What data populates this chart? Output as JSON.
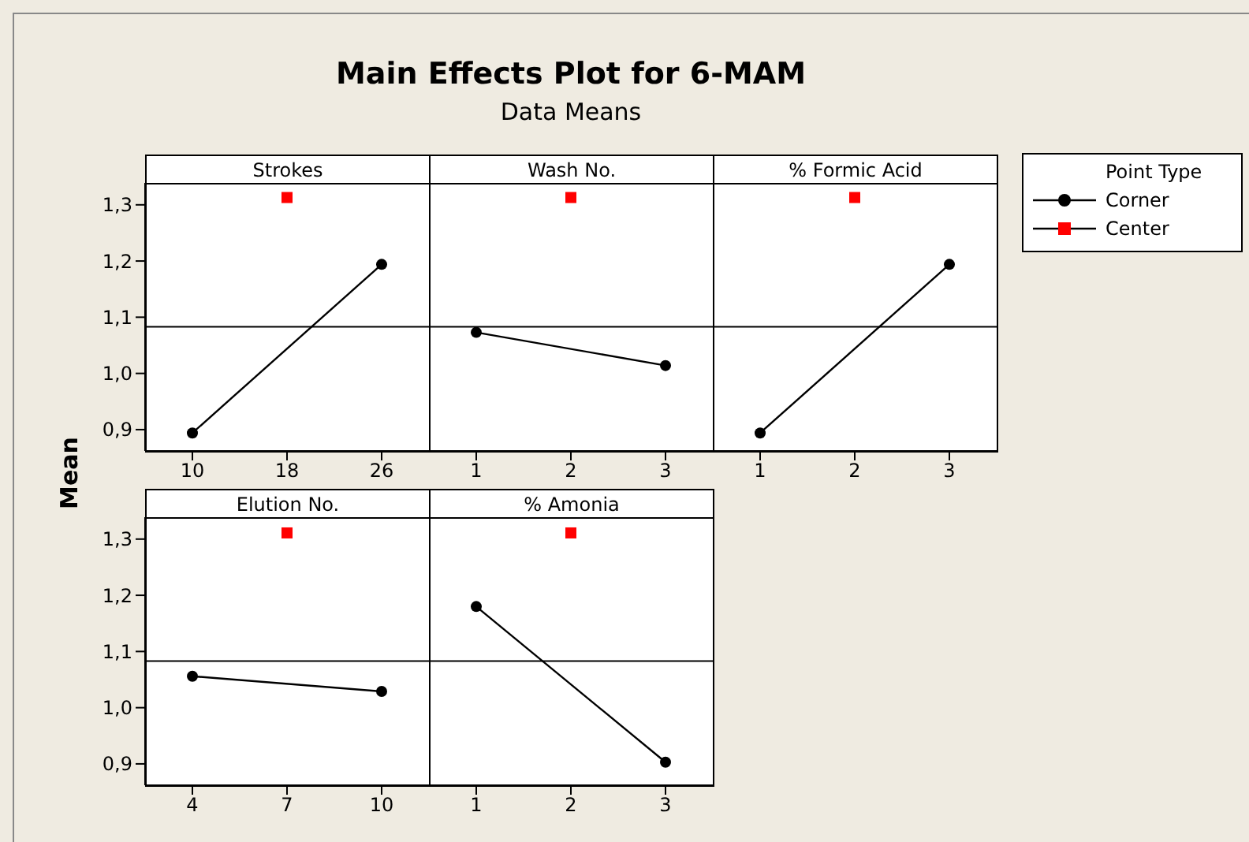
{
  "chart_data": [
    {
      "type": "line",
      "ylabel": "Mean",
      "xlabel": "Strokes",
      "xlim": [
        6,
        30
      ],
      "xticks": [
        10,
        18,
        26
      ],
      "ylim": [
        0.862,
        1.339
      ],
      "yticks": [
        {
          "value": 0.9,
          "label": "0,9"
        },
        {
          "value": 1.0,
          "label": "1,0"
        },
        {
          "value": 1.1,
          "label": "1,1"
        },
        {
          "value": 1.2,
          "label": "1,2"
        },
        {
          "value": 1.3,
          "label": "1,3"
        }
      ],
      "marker": "circle",
      "legend": false,
      "ref_lines": [
        {
          "axis": "y",
          "value": 1.083,
          "color": "#000000"
        }
      ],
      "series": [
        {
          "color": "#000000",
          "x": [
            10,
            26
          ],
          "values": [
            0.894,
            1.194
          ]
        },
        {
          "type": "scatter",
          "marker": "square",
          "color": "#ff0000",
          "x": [
            18
          ],
          "values": [
            1.313
          ]
        }
      ]
    },
    {
      "type": "line",
      "title": "Main Effects Plot for 6-MAM",
      "subtitle": "Data Means",
      "xlabel": "Wash No.",
      "xlim": [
        0.5,
        3.5
      ],
      "xticks": [
        1,
        2,
        3
      ],
      "ylim": [
        0.862,
        1.339
      ],
      "tick_labels": "x",
      "marker": "circle",
      "legend": false,
      "ref_lines": [
        {
          "axis": "y",
          "value": 1.083,
          "color": "#000000"
        }
      ],
      "series": [
        {
          "color": "#000000",
          "x": [
            1,
            3
          ],
          "values": [
            1.073,
            1.014
          ]
        },
        {
          "type": "scatter",
          "marker": "square",
          "color": "#ff0000",
          "x": [
            2
          ],
          "values": [
            1.313
          ]
        }
      ]
    },
    {
      "type": "line",
      "xlabel": "% Formic Acid",
      "xlim": [
        0.5,
        3.5
      ],
      "xticks": [
        1,
        2,
        3
      ],
      "ylim": [
        0.862,
        1.339
      ],
      "tick_labels": "x",
      "marker": "circle",
      "legend": "right",
      "legend_title": "Point Type",
      "ref_lines": [
        {
          "axis": "y",
          "value": 1.083,
          "color": "#000000"
        }
      ],
      "series": [
        {
          "name": "Corner",
          "color": "#000000",
          "x": [
            1,
            3
          ],
          "values": [
            0.894,
            1.194
          ]
        },
        {
          "type": "scatter",
          "name": "Center",
          "marker": "square",
          "color": "#ff0000",
          "x": [
            2
          ],
          "values": [
            1.313
          ]
        }
      ]
    },
    {
      "type": "line",
      "xlabel": "Elution No.",
      "xlim": [
        2.5,
        11.5
      ],
      "xticks": [
        4,
        7,
        10
      ],
      "ylim": [
        0.862,
        1.339
      ],
      "yticks": [
        {
          "value": 0.9,
          "label": "0,9"
        },
        {
          "value": 1.0,
          "label": "1,0"
        },
        {
          "value": 1.1,
          "label": "1,1"
        },
        {
          "value": 1.2,
          "label": "1,2"
        },
        {
          "value": 1.3,
          "label": "1,3"
        }
      ],
      "marker": "circle",
      "legend": false,
      "ref_lines": [
        {
          "axis": "y",
          "value": 1.083,
          "color": "#000000"
        }
      ],
      "series": [
        {
          "color": "#000000",
          "x": [
            4,
            10
          ],
          "values": [
            1.056,
            1.029
          ]
        },
        {
          "type": "scatter",
          "marker": "square",
          "color": "#ff0000",
          "x": [
            7
          ],
          "values": [
            1.311
          ]
        }
      ]
    },
    {
      "type": "line",
      "xlabel": "% Amonia",
      "xlim": [
        0.5,
        3.5
      ],
      "xticks": [
        1,
        2,
        3
      ],
      "ylim": [
        0.862,
        1.339
      ],
      "tick_labels": "x",
      "marker": "circle",
      "legend": false,
      "ref_lines": [
        {
          "axis": "y",
          "value": 1.083,
          "color": "#000000"
        }
      ],
      "series": [
        {
          "color": "#000000",
          "x": [
            1,
            3
          ],
          "values": [
            1.18,
            0.903
          ]
        },
        {
          "type": "scatter",
          "marker": "square",
          "color": "#ff0000",
          "x": [
            2
          ],
          "values": [
            1.311
          ]
        }
      ]
    }
  ]
}
